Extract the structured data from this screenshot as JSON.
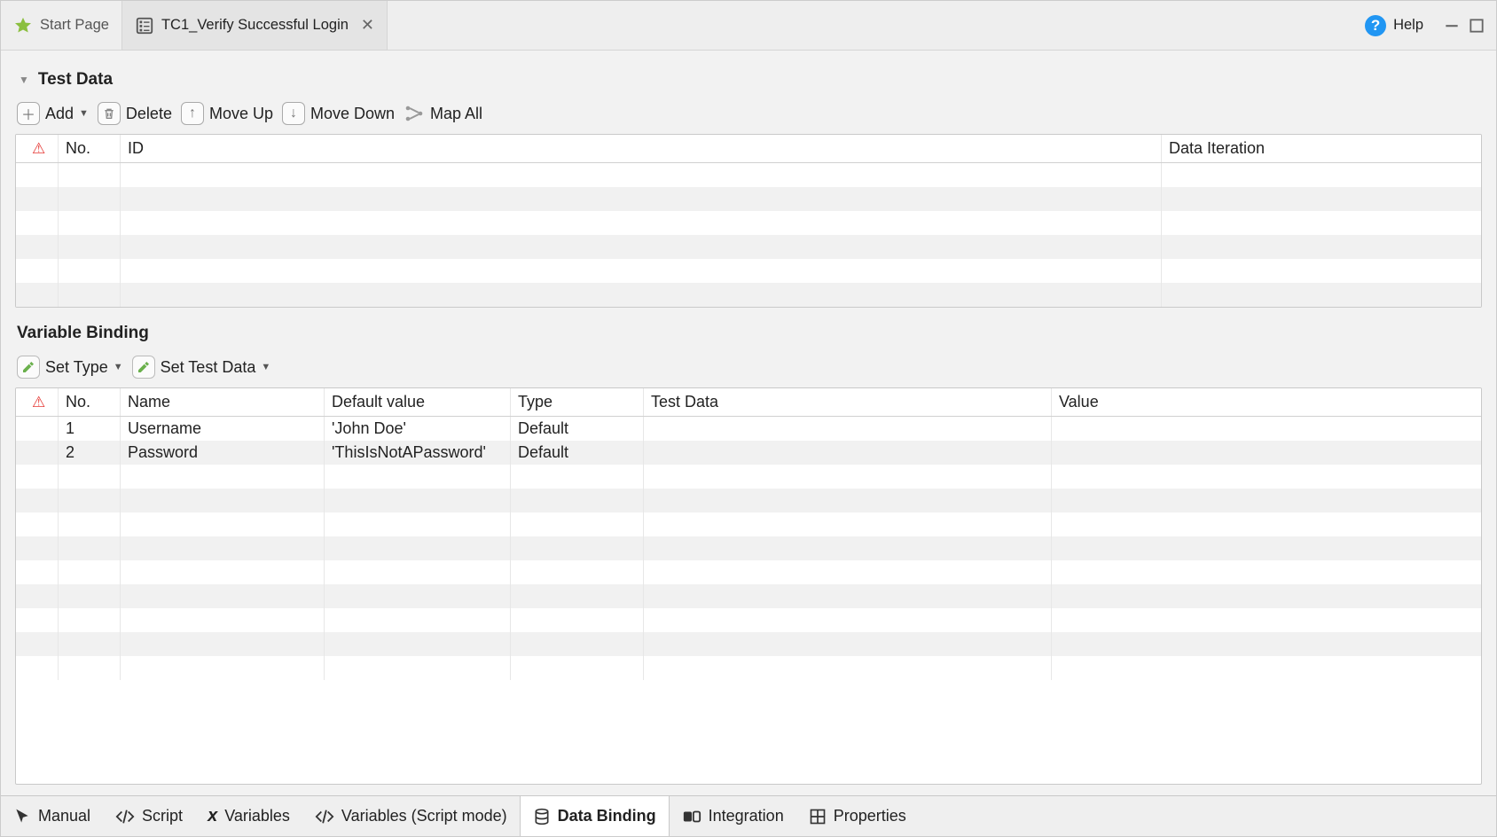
{
  "tabs": {
    "start_page": "Start Page",
    "active": "TC1_Verify Successful Login"
  },
  "help_label": "Help",
  "test_data": {
    "title": "Test Data",
    "toolbar": {
      "add": "Add",
      "delete": "Delete",
      "move_up": "Move Up",
      "move_down": "Move Down",
      "map_all": "Map All"
    },
    "columns": {
      "no": "No.",
      "id": "ID",
      "iteration": "Data Iteration"
    },
    "rows": [],
    "empty_row_count": 6
  },
  "variable_binding": {
    "title": "Variable Binding",
    "toolbar": {
      "set_type": "Set Type",
      "set_test_data": "Set Test Data"
    },
    "columns": {
      "no": "No.",
      "name": "Name",
      "def": "Default value",
      "type": "Type",
      "test_data": "Test Data",
      "value": "Value"
    },
    "rows": [
      {
        "no": "1",
        "name": "Username",
        "def": "'John Doe'",
        "type": "Default",
        "test_data": "",
        "value": ""
      },
      {
        "no": "2",
        "name": "Password",
        "def": "'ThisIsNotAPassword'",
        "type": "Default",
        "test_data": "",
        "value": ""
      }
    ],
    "empty_row_count": 9
  },
  "bottom_tabs": {
    "manual": "Manual",
    "script": "Script",
    "variables": "Variables",
    "variables_script": "Variables (Script mode)",
    "data_binding": "Data Binding",
    "integration": "Integration",
    "properties": "Properties"
  },
  "colors": {
    "star": "#8bbf3f",
    "help_bg": "#2196f3",
    "warn": "#e53935",
    "edit_pencil": "#6ab04c"
  }
}
